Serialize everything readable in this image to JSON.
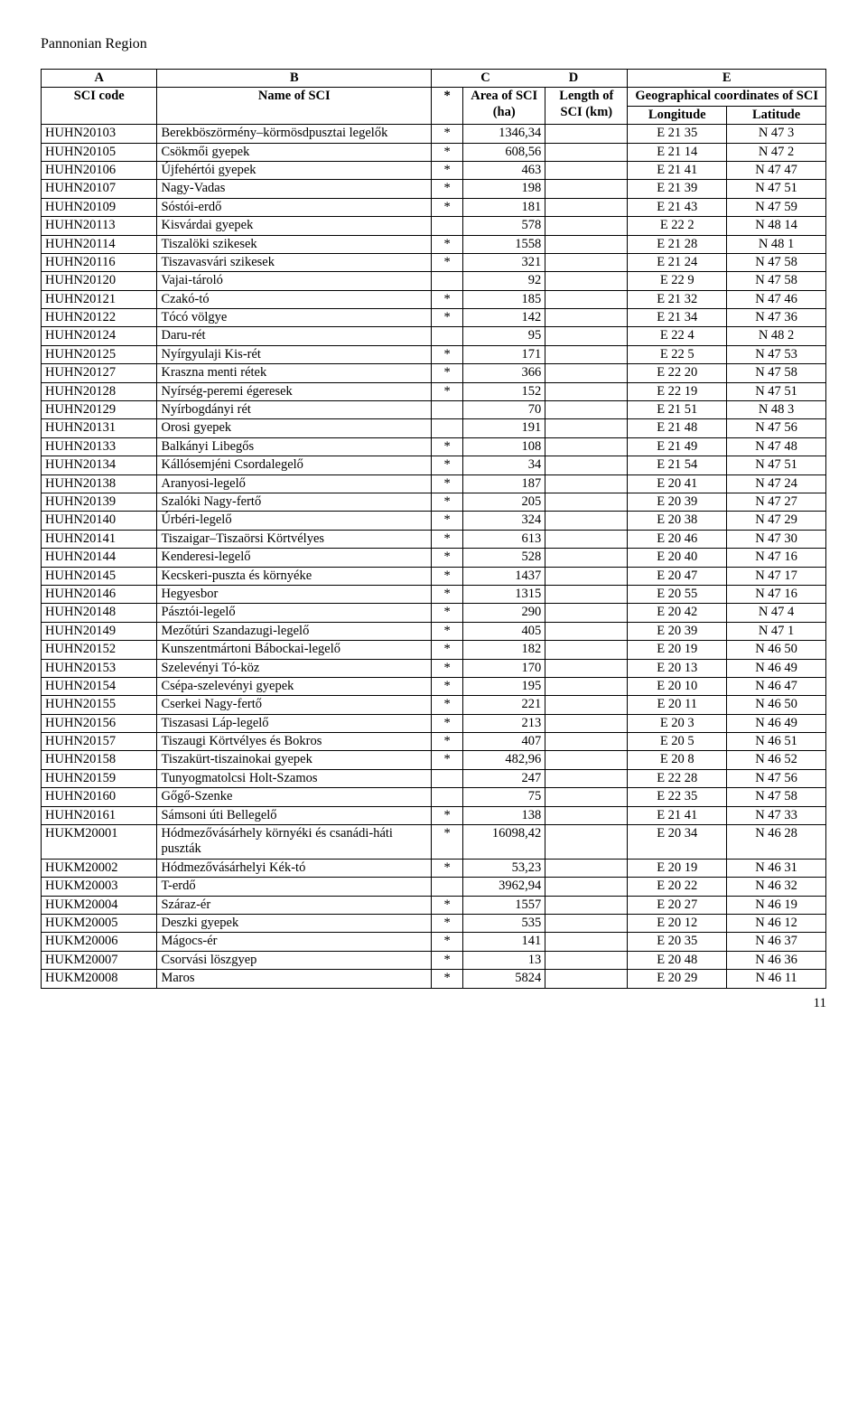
{
  "region_title": "Pannonian Region",
  "page_number": "11",
  "letters": {
    "a": "A",
    "b": "B",
    "c": "C",
    "d": "D",
    "e": "E"
  },
  "header": {
    "sci_code": "SCI code",
    "name": "Name of SCI",
    "star": "*",
    "area": "Area of SCI (ha)",
    "length": "Length of SCI (km)",
    "geo": "Geographical coordinates of SCI",
    "lon": "Longitude",
    "lat": "Latitude"
  },
  "rows": [
    {
      "code": "HUHN20103",
      "name": "Berekböszörmény–körmösdpusztai legelők",
      "star": "*",
      "area": "1346,34",
      "len": "",
      "lon": "E 21 35",
      "lat": "N 47 3"
    },
    {
      "code": "HUHN20105",
      "name": "Csökmői gyepek",
      "star": "*",
      "area": "608,56",
      "len": "",
      "lon": "E 21 14",
      "lat": "N 47 2"
    },
    {
      "code": "HUHN20106",
      "name": "Újfehértói gyepek",
      "star": "*",
      "area": "463",
      "len": "",
      "lon": "E 21 41",
      "lat": "N 47 47"
    },
    {
      "code": "HUHN20107",
      "name": "Nagy-Vadas",
      "star": "*",
      "area": "198",
      "len": "",
      "lon": "E 21 39",
      "lat": "N 47 51"
    },
    {
      "code": "HUHN20109",
      "name": "Sóstói-erdő",
      "star": "*",
      "area": "181",
      "len": "",
      "lon": "E 21 43",
      "lat": "N 47 59"
    },
    {
      "code": "HUHN20113",
      "name": "Kisvárdai gyepek",
      "star": "",
      "area": "578",
      "len": "",
      "lon": "E 22 2",
      "lat": "N 48 14"
    },
    {
      "code": "HUHN20114",
      "name": "Tiszalöki szikesek",
      "star": "*",
      "area": "1558",
      "len": "",
      "lon": "E 21 28",
      "lat": "N 48 1"
    },
    {
      "code": "HUHN20116",
      "name": "Tiszavasvári szikesek",
      "star": "*",
      "area": "321",
      "len": "",
      "lon": "E 21 24",
      "lat": "N 47 58"
    },
    {
      "code": "HUHN20120",
      "name": "Vajai-tároló",
      "star": "",
      "area": "92",
      "len": "",
      "lon": "E 22 9",
      "lat": "N 47 58"
    },
    {
      "code": "HUHN20121",
      "name": "Czakó-tó",
      "star": "*",
      "area": "185",
      "len": "",
      "lon": "E 21 32",
      "lat": "N 47 46"
    },
    {
      "code": "HUHN20122",
      "name": "Tócó völgye",
      "star": "*",
      "area": "142",
      "len": "",
      "lon": "E 21 34",
      "lat": "N 47 36"
    },
    {
      "code": "HUHN20124",
      "name": "Daru-rét",
      "star": "",
      "area": "95",
      "len": "",
      "lon": "E 22 4",
      "lat": "N 48 2"
    },
    {
      "code": "HUHN20125",
      "name": "Nyírgyulaji Kis-rét",
      "star": "*",
      "area": "171",
      "len": "",
      "lon": "E 22 5",
      "lat": "N 47 53"
    },
    {
      "code": "HUHN20127",
      "name": "Kraszna menti rétek",
      "star": "*",
      "area": "366",
      "len": "",
      "lon": "E 22 20",
      "lat": "N 47 58"
    },
    {
      "code": "HUHN20128",
      "name": "Nyírség-peremi égeresek",
      "star": "*",
      "area": "152",
      "len": "",
      "lon": "E 22 19",
      "lat": "N 47 51"
    },
    {
      "code": "HUHN20129",
      "name": "Nyírbogdányi rét",
      "star": "",
      "area": "70",
      "len": "",
      "lon": "E 21 51",
      "lat": "N 48 3"
    },
    {
      "code": "HUHN20131",
      "name": "Orosi gyepek",
      "star": "",
      "area": "191",
      "len": "",
      "lon": "E 21 48",
      "lat": "N 47 56"
    },
    {
      "code": "HUHN20133",
      "name": "Balkányi Libegős",
      "star": "*",
      "area": "108",
      "len": "",
      "lon": "E 21 49",
      "lat": "N 47 48"
    },
    {
      "code": "HUHN20134",
      "name": "Kállósemjéni Csordalegelő",
      "star": "*",
      "area": "34",
      "len": "",
      "lon": "E 21 54",
      "lat": "N 47 51"
    },
    {
      "code": "HUHN20138",
      "name": "Aranyosi-legelő",
      "star": "*",
      "area": "187",
      "len": "",
      "lon": "E 20 41",
      "lat": "N 47 24"
    },
    {
      "code": "HUHN20139",
      "name": "Szalóki Nagy-fertő",
      "star": "*",
      "area": "205",
      "len": "",
      "lon": "E 20 39",
      "lat": "N 47 27"
    },
    {
      "code": "HUHN20140",
      "name": "Úrbéri-legelő",
      "star": "*",
      "area": "324",
      "len": "",
      "lon": "E 20 38",
      "lat": "N 47 29"
    },
    {
      "code": "HUHN20141",
      "name": "Tiszaigar–Tiszaörsi Körtvélyes",
      "star": "*",
      "area": "613",
      "len": "",
      "lon": "E 20 46",
      "lat": "N 47 30"
    },
    {
      "code": "HUHN20144",
      "name": "Kenderesi-legelő",
      "star": "*",
      "area": "528",
      "len": "",
      "lon": "E 20 40",
      "lat": "N 47 16"
    },
    {
      "code": "HUHN20145",
      "name": "Kecskeri-puszta és környéke",
      "star": "*",
      "area": "1437",
      "len": "",
      "lon": "E 20 47",
      "lat": "N 47 17"
    },
    {
      "code": "HUHN20146",
      "name": "Hegyesbor",
      "star": "*",
      "area": "1315",
      "len": "",
      "lon": "E 20 55",
      "lat": "N 47 16"
    },
    {
      "code": "HUHN20148",
      "name": "Pásztói-legelő",
      "star": "*",
      "area": "290",
      "len": "",
      "lon": "E 20 42",
      "lat": "N 47 4"
    },
    {
      "code": "HUHN20149",
      "name": "Mezőtúri Szandazugi-legelő",
      "star": "*",
      "area": "405",
      "len": "",
      "lon": "E 20 39",
      "lat": "N 47 1"
    },
    {
      "code": "HUHN20152",
      "name": "Kunszentmártoni Bábockai-legelő",
      "star": "*",
      "area": "182",
      "len": "",
      "lon": "E 20 19",
      "lat": "N 46 50"
    },
    {
      "code": "HUHN20153",
      "name": "Szelevényi Tó-köz",
      "star": "*",
      "area": "170",
      "len": "",
      "lon": "E 20 13",
      "lat": "N 46 49"
    },
    {
      "code": "HUHN20154",
      "name": "Csépa-szelevényi gyepek",
      "star": "*",
      "area": "195",
      "len": "",
      "lon": "E 20 10",
      "lat": "N 46 47"
    },
    {
      "code": "HUHN20155",
      "name": "Cserkei Nagy-fertő",
      "star": "*",
      "area": "221",
      "len": "",
      "lon": "E 20 11",
      "lat": "N 46 50"
    },
    {
      "code": "HUHN20156",
      "name": "Tiszasasi Láp-legelő",
      "star": "*",
      "area": "213",
      "len": "",
      "lon": "E 20 3",
      "lat": "N 46 49"
    },
    {
      "code": "HUHN20157",
      "name": "Tiszaugi Körtvélyes és Bokros",
      "star": "*",
      "area": "407",
      "len": "",
      "lon": "E 20 5",
      "lat": "N 46 51"
    },
    {
      "code": "HUHN20158",
      "name": "Tiszakürt-tiszainokai gyepek",
      "star": "*",
      "area": "482,96",
      "len": "",
      "lon": "E 20 8",
      "lat": "N 46 52"
    },
    {
      "code": "HUHN20159",
      "name": "Tunyogmatolcsi Holt-Szamos",
      "star": "",
      "area": "247",
      "len": "",
      "lon": "E 22 28",
      "lat": "N 47 56"
    },
    {
      "code": "HUHN20160",
      "name": "Gőgő-Szenke",
      "star": "",
      "area": "75",
      "len": "",
      "lon": "E 22 35",
      "lat": "N 47 58"
    },
    {
      "code": "HUHN20161",
      "name": "Sámsoni úti Bellegelő",
      "star": "*",
      "area": "138",
      "len": "",
      "lon": "E 21 41",
      "lat": "N 47 33"
    },
    {
      "code": "HUKM20001",
      "name": "Hódmezővásárhely környéki és csanádi-háti puszták",
      "star": "*",
      "area": "16098,42",
      "len": "",
      "lon": "E 20 34",
      "lat": "N 46 28"
    },
    {
      "code": "HUKM20002",
      "name": "Hódmezővásárhelyi Kék-tó",
      "star": "*",
      "area": "53,23",
      "len": "",
      "lon": "E 20 19",
      "lat": "N 46 31"
    },
    {
      "code": "HUKM20003",
      "name": "T-erdő",
      "star": "",
      "area": "3962,94",
      "len": "",
      "lon": "E 20 22",
      "lat": "N 46 32"
    },
    {
      "code": "HUKM20004",
      "name": "Száraz-ér",
      "star": "*",
      "area": "1557",
      "len": "",
      "lon": "E 20 27",
      "lat": "N 46 19"
    },
    {
      "code": "HUKM20005",
      "name": "Deszki gyepek",
      "star": "*",
      "area": "535",
      "len": "",
      "lon": "E 20 12",
      "lat": "N 46 12"
    },
    {
      "code": "HUKM20006",
      "name": "Mágocs-ér",
      "star": "*",
      "area": "141",
      "len": "",
      "lon": "E 20 35",
      "lat": "N 46 37"
    },
    {
      "code": "HUKM20007",
      "name": "Csorvási löszgyep",
      "star": "*",
      "area": "13",
      "len": "",
      "lon": "E 20 48",
      "lat": "N 46 36"
    },
    {
      "code": "HUKM20008",
      "name": "Maros",
      "star": "*",
      "area": "5824",
      "len": "",
      "lon": "E 20 29",
      "lat": "N 46 11"
    }
  ]
}
